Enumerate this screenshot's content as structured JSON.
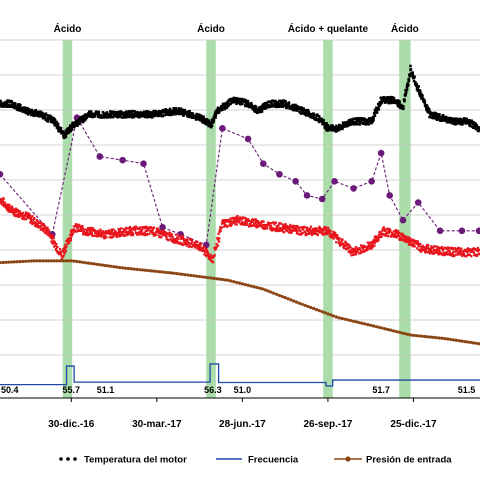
{
  "chart_data": {
    "type": "line",
    "title": "",
    "xlabel": "",
    "ylabel": "",
    "x_ticks": [
      {
        "date": "2016-12-30",
        "label": "30-dic.-16"
      },
      {
        "date": "2017-03-30",
        "label": "30-mar.-17"
      },
      {
        "date": "2017-06-28",
        "label": "28-jun.-17"
      },
      {
        "date": "2017-09-26",
        "label": "26-sep.-17"
      },
      {
        "date": "2017-12-25",
        "label": "25-dic.-17"
      }
    ],
    "xlim": [
      "2016-10-16",
      "2018-03-05"
    ],
    "grid": "horizontal",
    "treatments": [
      {
        "label": "Ácido",
        "start": "2016-12-21",
        "end": "2016-12-31"
      },
      {
        "label": "Ácido",
        "start": "2017-05-21",
        "end": "2017-05-31"
      },
      {
        "label": "Ácido + quelante",
        "start": "2017-09-21",
        "end": "2017-10-01"
      },
      {
        "label": "Ácido",
        "start": "2017-12-10",
        "end": "2017-12-22"
      }
    ],
    "frequency_labels": [
      {
        "date": "2016-10-17",
        "label": "50.4"
      },
      {
        "date": "2016-12-30",
        "label": "55.7"
      },
      {
        "date": "2017-02-04",
        "label": "51.1"
      },
      {
        "date": "2017-05-28",
        "label": "56.3"
      },
      {
        "date": "2017-06-28",
        "label": "51.0"
      },
      {
        "date": "2017-11-21",
        "label": "51.7"
      },
      {
        "date": "2018-02-28",
        "label": "51.5"
      }
    ],
    "series": [
      {
        "name": "Temperatura del motor",
        "color": "#000000",
        "points": [
          [
            "2016-10-16",
            82
          ],
          [
            "2016-10-27",
            82
          ],
          [
            "2016-11-12",
            80
          ],
          [
            "2016-11-28",
            79
          ],
          [
            "2016-12-12",
            77
          ],
          [
            "2016-12-22",
            73
          ],
          [
            "2017-01-02",
            76
          ],
          [
            "2017-01-18",
            79
          ],
          [
            "2017-02-10",
            79
          ],
          [
            "2017-03-04",
            79
          ],
          [
            "2017-03-25",
            79
          ],
          [
            "2017-04-21",
            80
          ],
          [
            "2017-05-15",
            78
          ],
          [
            "2017-05-26",
            76
          ],
          [
            "2017-06-02",
            80
          ],
          [
            "2017-06-18",
            83
          ],
          [
            "2017-07-04",
            82
          ],
          [
            "2017-07-15",
            80
          ],
          [
            "2017-07-26",
            82
          ],
          [
            "2017-08-11",
            82
          ],
          [
            "2017-08-30",
            80
          ],
          [
            "2017-09-16",
            78
          ],
          [
            "2017-09-26",
            75
          ],
          [
            "2017-10-06",
            75
          ],
          [
            "2017-10-22",
            77
          ],
          [
            "2017-11-11",
            77
          ],
          [
            "2017-11-21",
            83
          ],
          [
            "2017-12-03",
            83
          ],
          [
            "2017-12-14",
            81
          ],
          [
            "2017-12-22",
            92
          ],
          [
            "2017-12-30",
            86
          ],
          [
            "2018-01-11",
            79
          ],
          [
            "2018-02-04",
            77
          ],
          [
            "2018-02-20",
            77
          ],
          [
            "2018-03-04",
            75
          ]
        ]
      },
      {
        "name": "Frecuencia",
        "color": "#1f4aa8",
        "points": [
          [
            "2016-10-16",
            50.4
          ],
          [
            "2016-12-20",
            50.4
          ],
          [
            "2016-12-25",
            55.7
          ],
          [
            "2016-12-31",
            55.7
          ],
          [
            "2017-01-02",
            51.1
          ],
          [
            "2017-05-21",
            51.1
          ],
          [
            "2017-05-25",
            56.3
          ],
          [
            "2017-06-01",
            56.3
          ],
          [
            "2017-06-03",
            51.0
          ],
          [
            "2017-09-22",
            51.0
          ],
          [
            "2017-09-24",
            50.0
          ],
          [
            "2017-10-01",
            51.7
          ],
          [
            "2017-12-10",
            51.7
          ],
          [
            "2017-12-22",
            51.7
          ],
          [
            "2018-03-05",
            51.5
          ]
        ]
      },
      {
        "name": "Presión de entrada",
        "color": "#8b4513",
        "points": [
          [
            "2016-10-16",
            37
          ],
          [
            "2016-11-22",
            37.5
          ],
          [
            "2016-12-31",
            37.5
          ],
          [
            "2017-02-22",
            35.5
          ],
          [
            "2017-04-17",
            34
          ],
          [
            "2017-06-13",
            32
          ],
          [
            "2017-07-20",
            29.5
          ],
          [
            "2017-08-27",
            25.5
          ],
          [
            "2017-10-06",
            21.5
          ],
          [
            "2017-11-14",
            19
          ],
          [
            "2017-12-22",
            16.5
          ],
          [
            "2018-01-27",
            15.5
          ],
          [
            "2018-03-05",
            14
          ]
        ]
      },
      {
        "name": "",
        "color": "#6b1a7a",
        "points": [
          [
            "2016-10-16",
            62
          ],
          [
            "2016-12-10",
            45
          ],
          [
            "2017-01-05",
            78
          ],
          [
            "2017-01-29",
            67
          ],
          [
            "2017-02-22",
            66
          ],
          [
            "2017-03-16",
            65
          ],
          [
            "2017-04-05",
            47
          ],
          [
            "2017-04-24",
            45
          ],
          [
            "2017-05-21",
            42
          ],
          [
            "2017-06-07",
            75
          ],
          [
            "2017-07-04",
            72
          ],
          [
            "2017-07-20",
            65
          ],
          [
            "2017-08-06",
            62
          ],
          [
            "2017-08-23",
            60
          ],
          [
            "2017-09-04",
            56
          ],
          [
            "2017-09-20",
            55
          ],
          [
            "2017-10-03",
            60
          ],
          [
            "2017-10-23",
            58
          ],
          [
            "2017-11-11",
            60
          ],
          [
            "2017-11-21",
            68
          ],
          [
            "2017-11-30",
            56
          ],
          [
            "2017-12-14",
            49
          ],
          [
            "2017-12-30",
            54
          ],
          [
            "2018-01-22",
            46
          ],
          [
            "2018-02-14",
            46
          ],
          [
            "2018-03-04",
            46
          ]
        ]
      },
      {
        "name": "",
        "color": "#e8141c",
        "points": [
          [
            "2016-10-16",
            55
          ],
          [
            "2016-10-27",
            52
          ],
          [
            "2016-11-14",
            50
          ],
          [
            "2016-12-05",
            46
          ],
          [
            "2016-12-20",
            39
          ],
          [
            "2017-01-02",
            47
          ],
          [
            "2017-01-13",
            46
          ],
          [
            "2017-02-04",
            45
          ],
          [
            "2017-03-04",
            46
          ],
          [
            "2017-03-25",
            46
          ],
          [
            "2017-04-16",
            44
          ],
          [
            "2017-05-12",
            42
          ],
          [
            "2017-05-28",
            38
          ],
          [
            "2017-06-07",
            48
          ],
          [
            "2017-06-23",
            49
          ],
          [
            "2017-07-15",
            48
          ],
          [
            "2017-08-06",
            47
          ],
          [
            "2017-08-30",
            46
          ],
          [
            "2017-09-26",
            46
          ],
          [
            "2017-10-22",
            40
          ],
          [
            "2017-11-11",
            42
          ],
          [
            "2017-11-23",
            46
          ],
          [
            "2017-12-08",
            45
          ],
          [
            "2018-01-04",
            41
          ],
          [
            "2018-02-04",
            40
          ],
          [
            "2018-03-04",
            40
          ]
        ]
      }
    ],
    "legend": {
      "position": "bottom",
      "items": [
        {
          "label": "Temperatura del motor",
          "color": "#000000",
          "marker": "dot"
        },
        {
          "label": "Frecuencia",
          "color": "#1f4aa8",
          "marker": "line"
        },
        {
          "label": "Presión de entrada",
          "color": "#8b4513",
          "marker": "line-dot"
        }
      ]
    }
  }
}
